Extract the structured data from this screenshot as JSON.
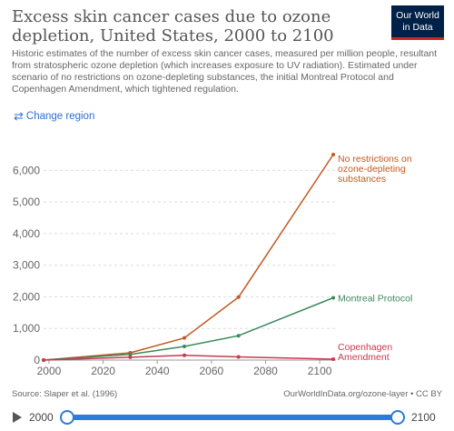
{
  "header": {
    "title": "Excess skin cancer cases due to ozone depletion, United States, 2000 to 2100",
    "subtitle": "Historic estimates of the number of excess skin cancer cases, measured per million people, resultant from stratospheric ozone depletion (which increases exposure to UV radiation). Estimated under scenario of no restrictions on ozone-depleting substances, the initial Montreal Protocol and Copenhagen Amendment, which tightened regulation.",
    "logo_line1": "Our World",
    "logo_line2": "in Data",
    "change_region_label": "Change region"
  },
  "chart_data": {
    "type": "line",
    "x_ticks": [
      "2000",
      "2020",
      "2040",
      "2060",
      "2080",
      "2100"
    ],
    "y_ticks": [
      "0",
      "1,000",
      "2,000",
      "3,000",
      "4,000",
      "5,000",
      "6,000"
    ],
    "xlim": [
      1998,
      2106
    ],
    "ylim": [
      0,
      6500
    ],
    "grid": "horizontal dashed",
    "series": [
      {
        "name": "No restrictions on ozone-depleting substances",
        "label_lines": [
          "No restrictions on",
          "ozone-depleting",
          "substances"
        ],
        "color": "#c2591e",
        "x": [
          1998,
          2030,
          2050,
          2070,
          2105
        ],
        "y": [
          0,
          230,
          700,
          1990,
          6500
        ]
      },
      {
        "name": "Montreal Protocol",
        "label_lines": [
          "Montreal Protocol"
        ],
        "color": "#3a8a5c",
        "x": [
          1998,
          2030,
          2050,
          2070,
          2105
        ],
        "y": [
          0,
          180,
          430,
          770,
          1970
        ]
      },
      {
        "name": "Copenhagen Amendment",
        "label_lines": [
          "Copenhagen",
          "Amendment"
        ],
        "color": "#c8394f",
        "x": [
          1998,
          2030,
          2050,
          2070,
          2105
        ],
        "y": [
          0,
          90,
          150,
          100,
          30
        ]
      }
    ]
  },
  "footer": {
    "source": "Source: Slaper et al. (1996)",
    "url": "OurWorldInData.org/ozone-layer • CC BY"
  },
  "timeline": {
    "start": "2000",
    "end": "2100"
  }
}
